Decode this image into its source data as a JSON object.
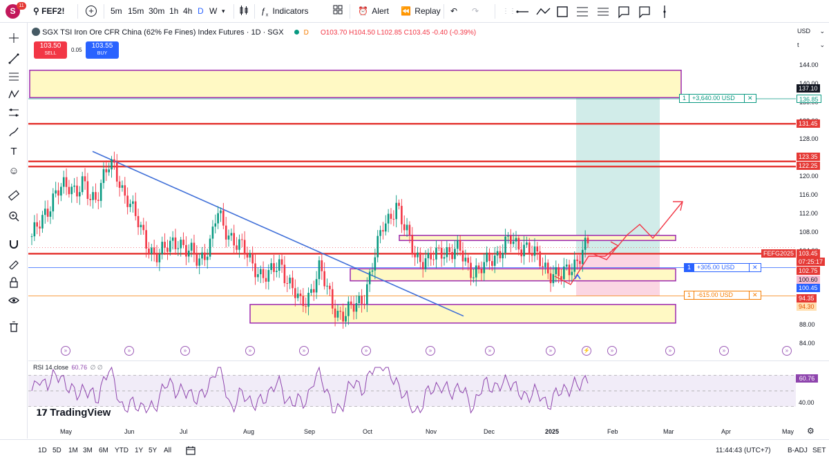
{
  "topbar": {
    "avatar_letter": "S",
    "avatar_badge": "11",
    "symbol": "FEF2!",
    "timeframes": [
      "5m",
      "15m",
      "30m",
      "1h",
      "4h",
      "D",
      "W"
    ],
    "indicators_label": "Indicators",
    "alert_label": "Alert",
    "replay_label": "Replay"
  },
  "legend": {
    "title": "SGX TSI Iron Ore CFR China (62% Fe Fines) Index Futures · 1D · SGX",
    "d_badge": "D",
    "ohlc": "O103.70 H104.50 L102.85 C103.45 -0.40 (-0.39%)",
    "sell_price": "103.50",
    "sell_label": "SELL",
    "spread": "0.05",
    "buy_price": "103.55",
    "buy_label": "BUY"
  },
  "price_axis": {
    "currency": "USD",
    "unit_selector": "t",
    "ticks": [
      "144.00",
      "140.00",
      "136.00",
      "132.00",
      "128.00",
      "124.00",
      "120.00",
      "116.00",
      "112.00",
      "108.00",
      "104.00",
      "100.00",
      "96.00",
      "92.00",
      "88.00",
      "84.00"
    ],
    "tags": [
      {
        "label": "137.10",
        "bg": "#131722",
        "fg": "#ffffff"
      },
      {
        "label": "136.85",
        "bg": "#ffffff",
        "fg": "#089981"
      },
      {
        "label": "131.45",
        "bg": "#e53935",
        "fg": "#ffffff"
      },
      {
        "label": "123.35",
        "bg": "#e53935",
        "fg": "#ffffff"
      },
      {
        "label": "122.25",
        "bg": "#e53935",
        "fg": "#ffffff"
      },
      {
        "label": "FEFG2025",
        "bg": "#e53935",
        "fg": "#ffffff"
      },
      {
        "label": "103.45",
        "bg": "#e53935",
        "fg": "#ffffff"
      },
      {
        "label": "07:25:17",
        "bg": "#e53935",
        "fg": "#ffffff"
      },
      {
        "label": "102.75",
        "bg": "#e53935",
        "fg": "#ffffff"
      },
      {
        "label": "100.60",
        "bg": "#f8bbd0",
        "fg": "#131722"
      },
      {
        "label": "100.45",
        "bg": "#2962ff",
        "fg": "#ffffff"
      },
      {
        "label": "94.35",
        "bg": "#e53935",
        "fg": "#ffffff"
      },
      {
        "label": "94.30",
        "bg": "#ffe0b2",
        "fg": "#e65100"
      }
    ]
  },
  "orders": [
    {
      "qty": "1",
      "text": "+3,640.00 USD",
      "close": "✕",
      "color": "#089981"
    },
    {
      "qty": "1",
      "text": "+305.00 USD",
      "close": "✕",
      "color": "#2962ff"
    },
    {
      "qty": "1",
      "text": "-615.00 USD",
      "close": "✕",
      "color": "#f57c00"
    }
  ],
  "rsi": {
    "label": "RSI 14 close",
    "value": "60.76",
    "extra": "∅ ∅",
    "tag": "60.76",
    "tick_40": "40.00"
  },
  "time_axis": [
    "May",
    "Jun",
    "Jul",
    "Aug",
    "Sep",
    "Oct",
    "Nov",
    "Dec",
    "2025",
    "Feb",
    "Mar",
    "Apr",
    "May"
  ],
  "watermark": "TradingView",
  "bottombar": {
    "ranges": [
      "1D",
      "5D",
      "1M",
      "3M",
      "6M",
      "YTD",
      "1Y",
      "5Y",
      "All"
    ],
    "clock": "11:44:43 (UTC+7)",
    "badj": "B-ADJ",
    "set": "SET"
  },
  "colors": {
    "bull": "#089981",
    "bear": "#f23645",
    "zone_fill": "#fff9c4",
    "zone_border": "#9c27b0",
    "resistance": "#e53935",
    "trend": "#3f6fd8",
    "rsi_line": "#8e44ad"
  },
  "chart_data": {
    "type": "candlestick",
    "symbol": "FEF2!",
    "interval": "1D",
    "y_range": [
      82,
      146
    ],
    "price_levels": [
      131.45,
      123.35,
      122.25,
      103.45,
      102.75,
      100.45,
      94.35
    ],
    "zones": [
      {
        "from": 137.1,
        "to": 143.0
      },
      {
        "from": 106.3,
        "to": 107.4
      },
      {
        "from": 97.6,
        "to": 100.2
      },
      {
        "from": 88.5,
        "to": 92.5
      }
    ],
    "close_path": [
      106,
      110,
      113,
      114,
      116,
      118,
      119,
      117,
      118,
      115,
      116,
      120,
      122,
      121,
      118,
      116,
      112,
      108,
      106,
      104,
      103,
      104,
      106,
      107,
      104,
      103,
      102,
      104,
      106,
      112,
      109,
      108,
      106,
      104,
      102,
      101,
      99,
      98,
      100,
      102,
      98,
      95,
      92,
      94,
      97,
      100,
      96,
      93,
      91,
      90,
      91,
      93,
      95,
      99,
      104,
      110,
      112,
      114,
      109,
      107,
      104,
      102,
      101,
      103,
      105,
      104,
      103,
      104,
      102,
      100,
      99,
      101,
      103,
      104,
      105,
      106,
      105,
      106,
      104,
      102,
      101,
      100,
      99,
      98,
      100,
      102,
      104,
      105
    ]
  }
}
